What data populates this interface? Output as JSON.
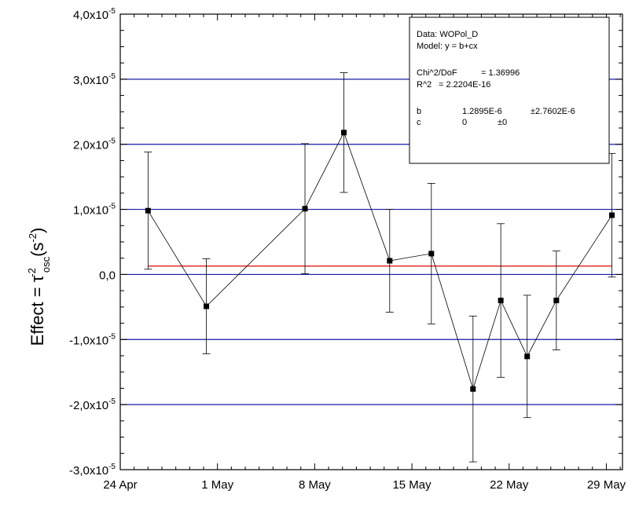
{
  "chart_data": {
    "type": "scatter",
    "title": "",
    "xlabel": "",
    "ylabel": {
      "prefix": "Effect = ",
      "symbol": "τ",
      "sup": "-2",
      "sub": "osc",
      "unit_open": "(s",
      "unit_sup": "-2",
      "unit_close": ")"
    },
    "x_ticks": [
      {
        "day": 0,
        "label": "24 Apr"
      },
      {
        "day": 7,
        "label": "1 May"
      },
      {
        "day": 14,
        "label": "8 May"
      },
      {
        "day": 21,
        "label": "15 May"
      },
      {
        "day": 28,
        "label": "22 May"
      },
      {
        "day": 35,
        "label": "29 May"
      }
    ],
    "xlim": [
      "24 Apr",
      "30 May"
    ],
    "ylim": [
      -3e-05,
      4e-05
    ],
    "y_ticks": [
      {
        "value": 4e-05,
        "mantissa": "4,0x10",
        "exp": "-5"
      },
      {
        "value": 3e-05,
        "mantissa": "3,0x10",
        "exp": "-5"
      },
      {
        "value": 2e-05,
        "mantissa": "2,0x10",
        "exp": "-5"
      },
      {
        "value": 1e-05,
        "mantissa": "1,0x10",
        "exp": "-5"
      },
      {
        "value": 0,
        "mantissa": "0,0",
        "exp": ""
      },
      {
        "value": -1e-05,
        "mantissa": "-1,0x10",
        "exp": "-5"
      },
      {
        "value": -2e-05,
        "mantissa": "-2,0x10",
        "exp": "-5"
      },
      {
        "value": -3e-05,
        "mantissa": "-3,0x10",
        "exp": "-5"
      }
    ],
    "gridlines_y": [
      3e-05,
      2e-05,
      1e-05,
      0,
      -1e-05,
      -2e-05
    ],
    "grid_color": "#1a1aa6",
    "points": [
      {
        "date": "2011-04-26",
        "day": 2.0,
        "y": 9.8e-06,
        "err": 9e-06
      },
      {
        "date": "2011-04-30",
        "day": 6.2,
        "y": -4.9e-06,
        "err": 7.3e-06
      },
      {
        "date": "2011-05-07",
        "day": 13.3,
        "y": 1.01e-05,
        "err": 1e-05
      },
      {
        "date": "2011-05-10",
        "day": 16.1,
        "y": 2.18e-05,
        "err": 9.2e-06
      },
      {
        "date": "2011-05-13",
        "day": 19.4,
        "y": 2.1e-06,
        "err": 7.9e-06
      },
      {
        "date": "2011-05-16",
        "day": 22.4,
        "y": 3.2e-06,
        "err": 1.08e-05
      },
      {
        "date": "2011-05-19",
        "day": 25.4,
        "y": -1.76e-05,
        "err": 1.12e-05
      },
      {
        "date": "2011-05-21",
        "day": 27.4,
        "y": -4e-06,
        "err": 1.18e-05
      },
      {
        "date": "2011-05-23",
        "day": 29.3,
        "y": -1.26e-05,
        "err": 9.4e-06
      },
      {
        "date": "2011-05-25",
        "day": 31.4,
        "y": -4e-06,
        "err": 7.6e-06
      },
      {
        "date": "2011-05-29",
        "day": 35.4,
        "y": 9.1e-06,
        "err": 9.5e-06
      }
    ],
    "fit": {
      "y": 1.2895e-06,
      "x_start_day": 2.0,
      "x_end_day": 35.4,
      "color": "#e0302a"
    },
    "fit_box": {
      "placement": "top-right",
      "data_label": "Data: WOPol_D",
      "model_label": "Model: y = b+cx",
      "chi_label": "Chi^2/DoF",
      "chi_value": "= 1.36996",
      "r_label": "R^2",
      "r_value": "=  2.2204E-16",
      "params": [
        {
          "name": "b",
          "value": "1.2895E-6",
          "error": "±2.7602E-6"
        },
        {
          "name": "c",
          "value": "0",
          "error": "±0"
        }
      ]
    }
  }
}
